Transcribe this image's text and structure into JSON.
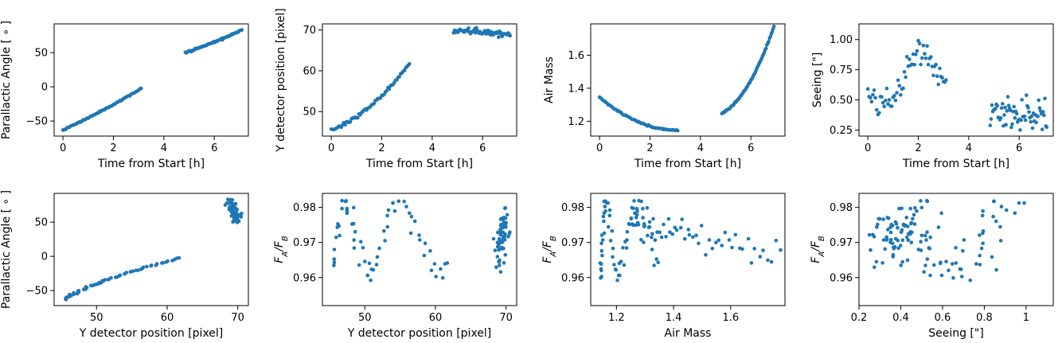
{
  "colors": {
    "series": "#1f77b4",
    "axes": "#000000",
    "background": "#ffffff"
  },
  "chart_data": [
    {
      "type": "scatter",
      "xlabel": "Time from Start [h]",
      "ylabel": "Parallactic Angle [ ∘ ]",
      "xlim": [
        -0.35,
        7.35
      ],
      "ylim": [
        -72,
        92
      ],
      "xticks": [
        0,
        2,
        4,
        6
      ],
      "yticks": [
        -50,
        0,
        50
      ],
      "series": [
        {
          "gen": "pa_time"
        }
      ]
    },
    {
      "type": "scatter",
      "xlabel": "Time from Start [h]",
      "ylabel": "Y detector position [pixel]",
      "xlim": [
        -0.35,
        7.35
      ],
      "ylim": [
        44,
        71.5
      ],
      "xticks": [
        0,
        2,
        4,
        6
      ],
      "yticks": [
        50,
        60,
        70
      ],
      "series": [
        {
          "gen": "y_time"
        }
      ]
    },
    {
      "type": "scatter",
      "xlabel": "Time from Start [h]",
      "ylabel": "Air Mass",
      "xlim": [
        -0.35,
        7.35
      ],
      "ylim": [
        1.11,
        1.79
      ],
      "xticks": [
        0,
        2,
        4,
        6
      ],
      "yticks": [
        1.2,
        1.4,
        1.6
      ],
      "series": [
        {
          "gen": "am_time"
        }
      ]
    },
    {
      "type": "scatter",
      "xlabel": "Time from Start [h]",
      "ylabel": "Seeing [\"]",
      "xlim": [
        -0.35,
        7.35
      ],
      "ylim": [
        0.2,
        1.13
      ],
      "xticks": [
        0,
        2,
        4,
        6
      ],
      "yticks": [
        0.25,
        0.5,
        0.75,
        1.0
      ],
      "ytick_labels": [
        "0.25",
        "0.50",
        "0.75",
        "1.00"
      ],
      "series": [
        {
          "gen": "seeing_time"
        }
      ]
    },
    {
      "type": "scatter",
      "xlabel": "Y detector position [pixel]",
      "ylabel": "Parallactic Angle [ ∘ ]",
      "xlim": [
        44,
        71.5
      ],
      "ylim": [
        -72,
        92
      ],
      "xticks": [
        50,
        60,
        70
      ],
      "yticks": [
        -50,
        0,
        50
      ],
      "series": [
        {
          "gen": "pa_y"
        }
      ]
    },
    {
      "type": "scatter",
      "xlabel": "Y detector position [pixel]",
      "ylabel": "F_A/F_B",
      "xlim": [
        44,
        71.5
      ],
      "ylim": [
        0.952,
        0.984
      ],
      "xticks": [
        50,
        60,
        70
      ],
      "yticks": [
        0.96,
        0.97,
        0.98
      ],
      "series": [
        {
          "gen": "flux_y"
        }
      ]
    },
    {
      "type": "scatter",
      "xlabel": "Air Mass",
      "ylabel": "F_A/F_B",
      "xlim": [
        1.11,
        1.79
      ],
      "ylim": [
        0.952,
        0.984
      ],
      "xticks": [
        1.2,
        1.4,
        1.6
      ],
      "yticks": [
        0.96,
        0.97,
        0.98
      ],
      "series": [
        {
          "gen": "flux_am"
        }
      ]
    },
    {
      "type": "scatter",
      "xlabel": "Seeing [\"]",
      "ylabel": "F_A/F_B",
      "xlim": [
        0.2,
        1.13
      ],
      "ylim": [
        0.952,
        0.984
      ],
      "xticks": [
        0.2,
        0.4,
        0.6,
        0.8,
        1.0
      ],
      "yticks": [
        0.96,
        0.97,
        0.98
      ],
      "series": [
        {
          "gen": "flux_seeing"
        }
      ]
    }
  ]
}
